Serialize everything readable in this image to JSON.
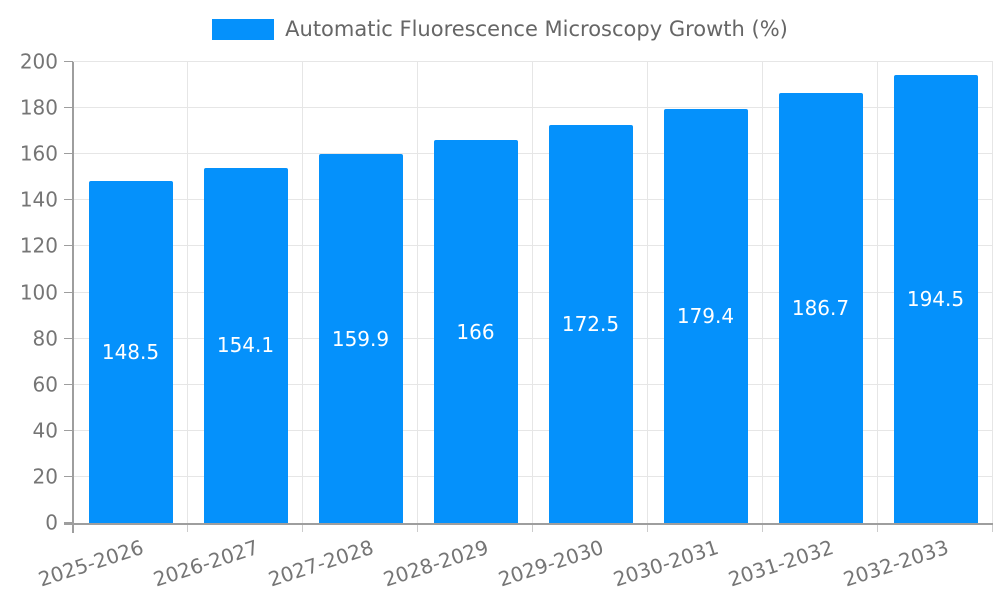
{
  "legend": {
    "label": "Automatic Fluorescence Microscopy Growth (%)"
  },
  "chart_data": {
    "type": "bar",
    "title": "Automatic Fluorescence Microscopy Growth (%)",
    "categories": [
      "2025-2026",
      "2026-2027",
      "2027-2028",
      "2028-2029",
      "2029-2030",
      "2030-2031",
      "2031-2032",
      "2032-2033"
    ],
    "values": [
      148.5,
      154.1,
      159.9,
      166,
      172.5,
      179.4,
      186.7,
      194.5
    ],
    "value_labels": [
      "148.5",
      "154.1",
      "159.9",
      "166",
      "172.5",
      "179.4",
      "186.7",
      "194.5"
    ],
    "xlabel": "",
    "ylabel": "",
    "ylim": [
      0,
      200
    ],
    "yticks": [
      0,
      20,
      40,
      60,
      80,
      100,
      120,
      140,
      160,
      180,
      200
    ],
    "grid": true,
    "legend_position": "top",
    "colors": {
      "bar": "#0591fb",
      "value_label": "#ffffff",
      "axis": "#9e9e9e",
      "gridline": "#e6e6e6",
      "boundary_tick": "#cccccc",
      "tick_text": "#757575",
      "legend_text": "#666666"
    }
  }
}
